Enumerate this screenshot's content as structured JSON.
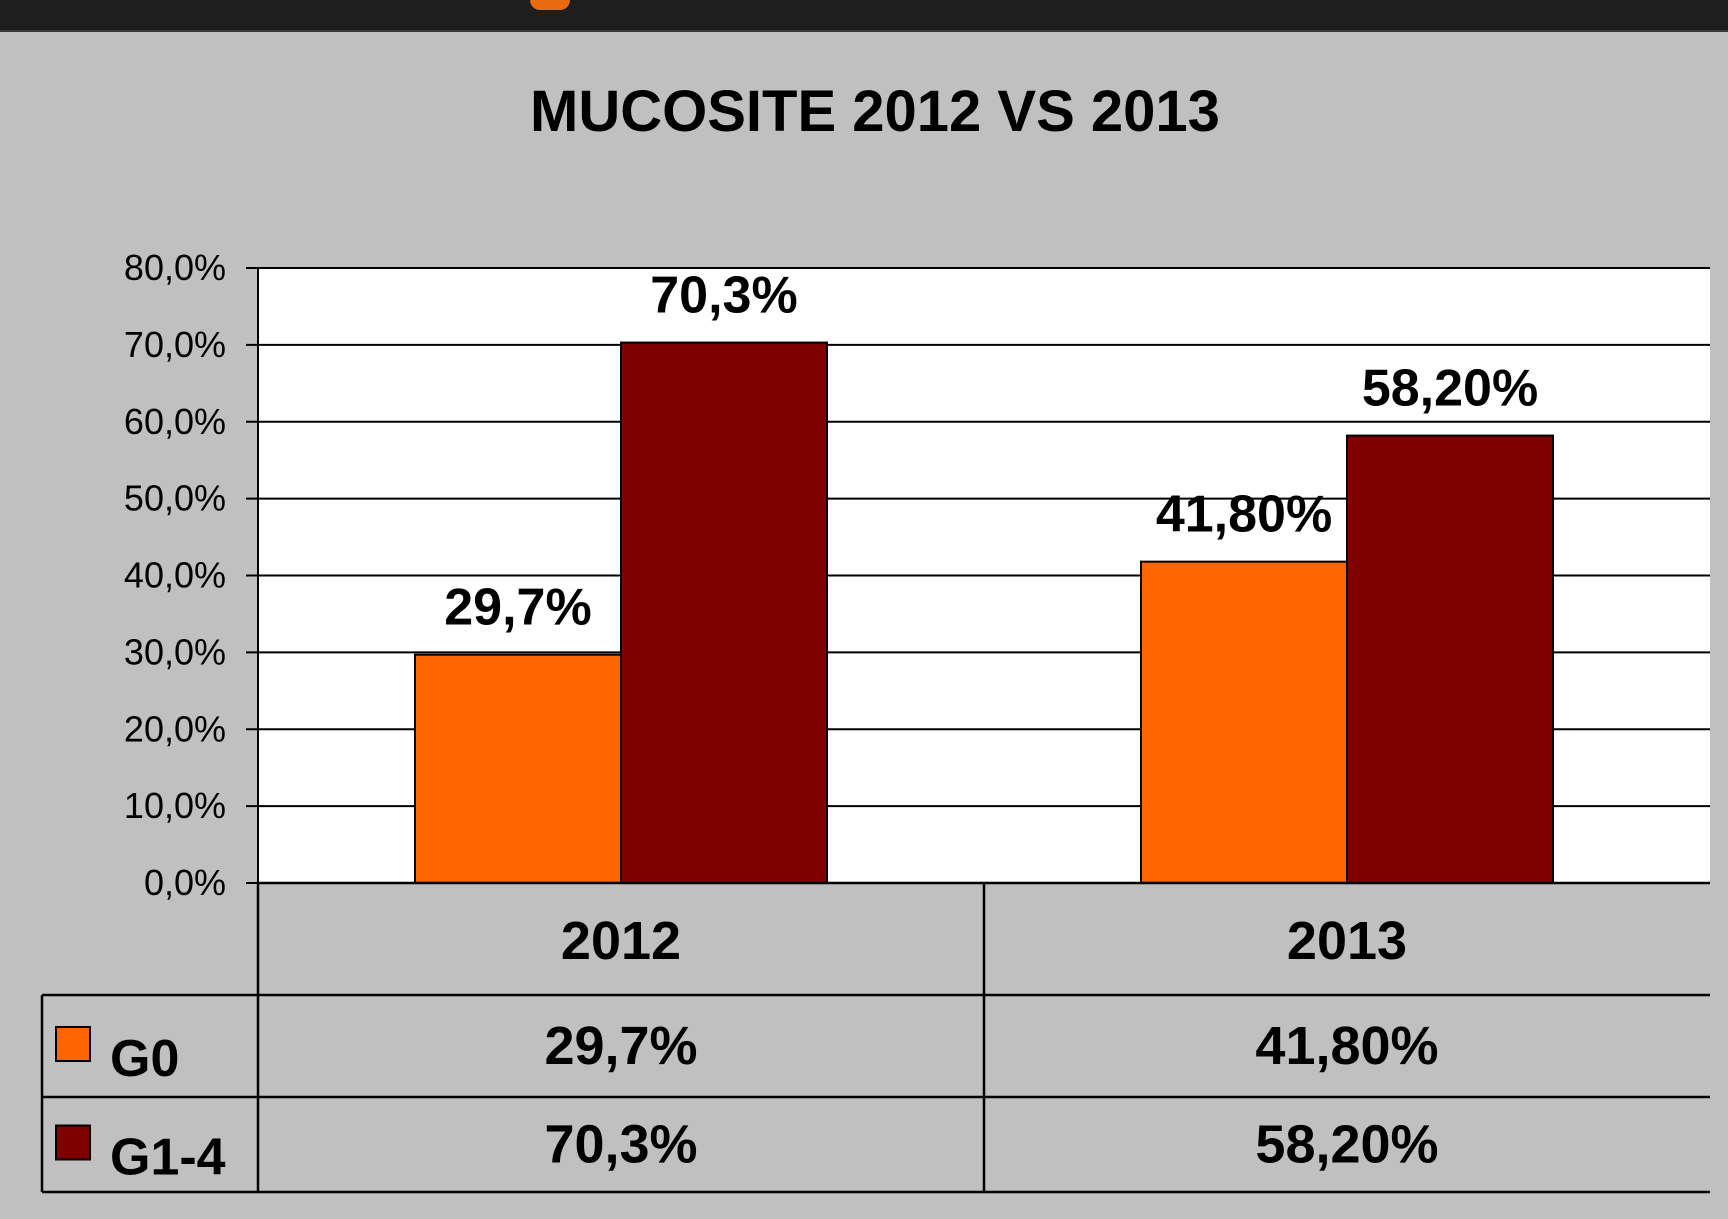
{
  "chart_data": {
    "type": "bar",
    "title": "MUCOSITE 2012 VS 2013",
    "categories": [
      "2012",
      "2013"
    ],
    "ylim": [
      0,
      80
    ],
    "yticks": [
      "0,0%",
      "10,0%",
      "20,0%",
      "30,0%",
      "40,0%",
      "50,0%",
      "60,0%",
      "70,0%",
      "80,0%"
    ],
    "grid": true,
    "legend": "data-table",
    "series": [
      {
        "name": "G0",
        "color": "#ff6600",
        "values": [
          29.7,
          41.8
        ],
        "labels": [
          "29,7%",
          "41,80%"
        ]
      },
      {
        "name": "G1-4",
        "color": "#800000",
        "values": [
          70.3,
          58.2
        ],
        "labels": [
          "70,3%",
          "58,20%"
        ]
      }
    ]
  }
}
